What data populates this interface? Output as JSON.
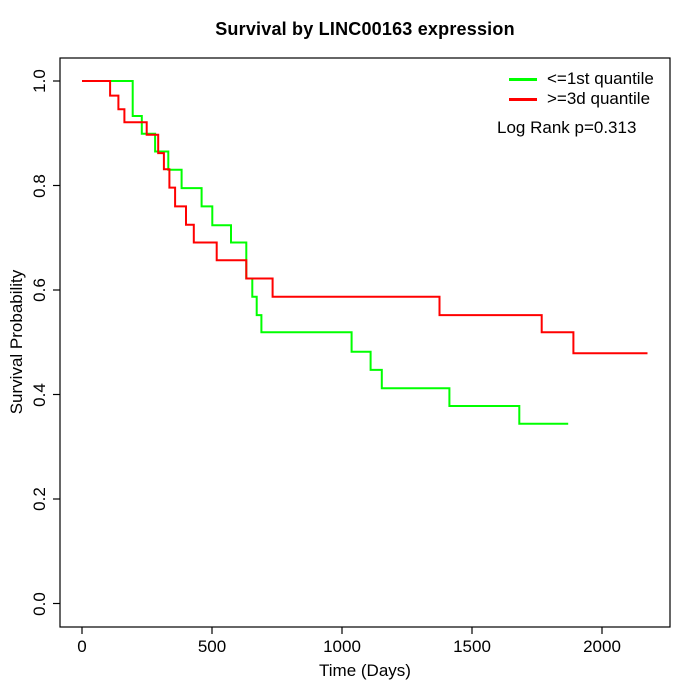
{
  "chart_data": {
    "type": "line",
    "subtype": "kaplan-meier-step",
    "title": "Survival by LINC00163 expression",
    "xlabel": "Time (Days)",
    "ylabel": "Survival Probability",
    "xlim": [
      0,
      2200
    ],
    "ylim": [
      0.0,
      1.0
    ],
    "x_ticks": [
      "0",
      "500",
      "1000",
      "1500",
      "2000"
    ],
    "y_ticks": [
      "0.0",
      "0.2",
      "0.4",
      "0.6",
      "0.8",
      "1.0"
    ],
    "grid": false,
    "legend_position": "top-right",
    "annotation": "Log Rank p=0.313",
    "axis_color": "#000000",
    "series": [
      {
        "name": "<=1st quantile",
        "color": "#00ff00",
        "start": [
          0,
          1.0
        ],
        "steps": [
          [
            195,
            0.933
          ],
          [
            230,
            0.899
          ],
          [
            281,
            0.865
          ],
          [
            332,
            0.83
          ],
          [
            383,
            0.795
          ],
          [
            460,
            0.76
          ],
          [
            501,
            0.724
          ],
          [
            573,
            0.691
          ],
          [
            632,
            0.622
          ],
          [
            655,
            0.587
          ],
          [
            672,
            0.552
          ],
          [
            690,
            0.519
          ],
          [
            1037,
            0.482
          ],
          [
            1110,
            0.447
          ],
          [
            1153,
            0.412
          ],
          [
            1413,
            0.378
          ],
          [
            1682,
            0.344
          ]
        ],
        "end_time": 1870
      },
      {
        "name": ">=3d quantile",
        "color": "#ff0000",
        "start": [
          0,
          1.0
        ],
        "steps": [
          [
            108,
            0.972
          ],
          [
            140,
            0.946
          ],
          [
            163,
            0.921
          ],
          [
            249,
            0.897
          ],
          [
            293,
            0.862
          ],
          [
            315,
            0.831
          ],
          [
            336,
            0.796
          ],
          [
            358,
            0.76
          ],
          [
            400,
            0.725
          ],
          [
            430,
            0.691
          ],
          [
            518,
            0.657
          ],
          [
            632,
            0.622
          ],
          [
            733,
            0.587
          ],
          [
            1375,
            0.552
          ],
          [
            1768,
            0.519
          ],
          [
            1890,
            0.479
          ]
        ],
        "end_time": 2175
      }
    ]
  }
}
